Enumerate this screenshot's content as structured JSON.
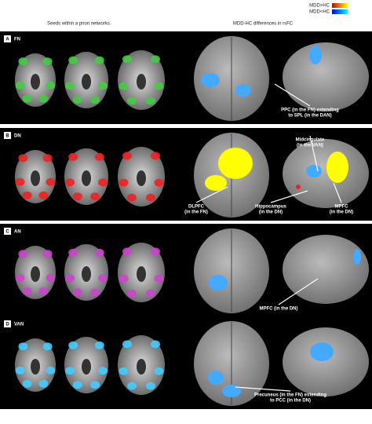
{
  "header": {
    "left_title": "Seeds within a priori networks",
    "right_title": "MDD-HC differences in rsFC"
  },
  "legend": [
    "MDD>HC",
    "MDD<HC"
  ],
  "panels": [
    {
      "letter": "A",
      "network": "FN",
      "annotations": [
        [
          "PPC (in the FN) extending",
          "to SPL (in the DAN)"
        ]
      ]
    },
    {
      "letter": "B",
      "network": "DN",
      "annotations": [
        [
          "Midcingulate",
          "(in the VAN)"
        ],
        [
          "DLPFC",
          "(in the FN)"
        ],
        [
          "Hippocampus",
          "(in the DN)"
        ],
        [
          "MPFC",
          "(in the DN)"
        ]
      ]
    },
    {
      "letter": "C",
      "network": "AN",
      "annotations": [
        [
          "MPFC (in the DN)"
        ]
      ]
    },
    {
      "letter": "D",
      "network": "VAN",
      "annotations": [
        [
          "Precuneus (in the FN) extending",
          "to PCC (in the DN)"
        ]
      ]
    }
  ]
}
